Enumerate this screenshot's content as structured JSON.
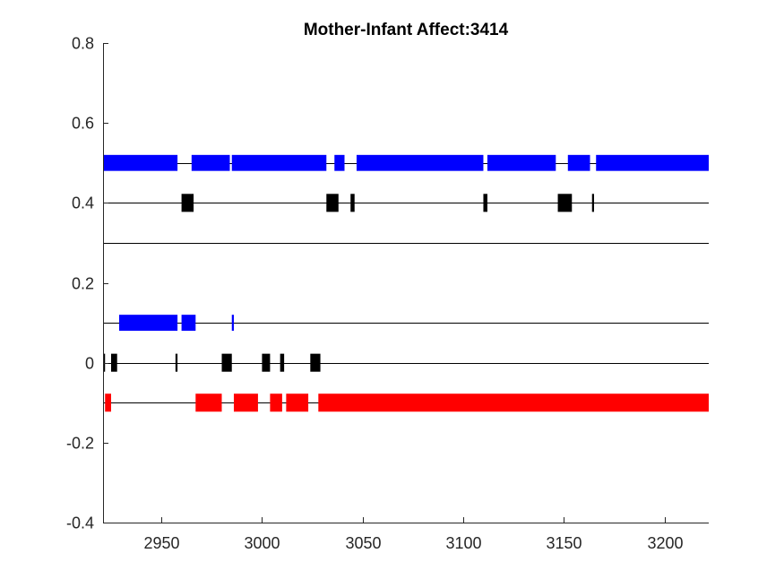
{
  "chart_data": {
    "type": "bar",
    "title": "Mother-Infant Affect:3414",
    "xlabel": "",
    "ylabel": "",
    "xlim": [
      2921,
      3222
    ],
    "ylim": [
      -0.4,
      0.8
    ],
    "xticks": [
      2950,
      3000,
      3050,
      3100,
      3150,
      3200
    ],
    "yticks": [
      -0.4,
      -0.2,
      0,
      0.2,
      0.4,
      0.6,
      0.8
    ],
    "grid": false,
    "baselines": [
      0.5,
      0.4,
      0.3,
      0.1,
      0,
      -0.1
    ],
    "colors": {
      "blue": "#0000ff",
      "black": "#000000",
      "red": "#ff0000",
      "axis": "#262626"
    },
    "series": [
      {
        "y": 0.5,
        "color": "blue",
        "thickness": 0.04,
        "segments": [
          [
            2921,
            2958
          ],
          [
            2965,
            2984
          ],
          [
            2985,
            3032
          ],
          [
            3036,
            3041
          ],
          [
            3047,
            3110
          ],
          [
            3112,
            3146
          ],
          [
            3152,
            3163
          ],
          [
            3166,
            3222
          ]
        ]
      },
      {
        "y": 0.4,
        "color": "black",
        "thickness": 0.045,
        "segments": [
          [
            2960,
            2966
          ],
          [
            3032,
            3038
          ],
          [
            3044,
            3046
          ],
          [
            3110,
            3112
          ],
          [
            3147,
            3154
          ],
          [
            3164,
            3165
          ]
        ]
      },
      {
        "y": 0.1,
        "color": "blue",
        "thickness": 0.04,
        "segments": [
          [
            2929,
            2958
          ],
          [
            2960,
            2967
          ],
          [
            2985,
            2986
          ]
        ]
      },
      {
        "y": 0,
        "color": "black",
        "thickness": 0.045,
        "segments": [
          [
            2921,
            2922
          ],
          [
            2925,
            2928
          ],
          [
            2957,
            2958
          ],
          [
            2980,
            2985
          ],
          [
            3000,
            3004
          ],
          [
            3009,
            3011
          ],
          [
            3024,
            3029
          ]
        ]
      },
      {
        "y": -0.1,
        "color": "red",
        "thickness": 0.045,
        "segments": [
          [
            2922,
            2925
          ],
          [
            2967,
            2980
          ],
          [
            2986,
            2998
          ],
          [
            3004,
            3010
          ],
          [
            3012,
            3023
          ],
          [
            3028,
            3222
          ]
        ]
      }
    ]
  }
}
